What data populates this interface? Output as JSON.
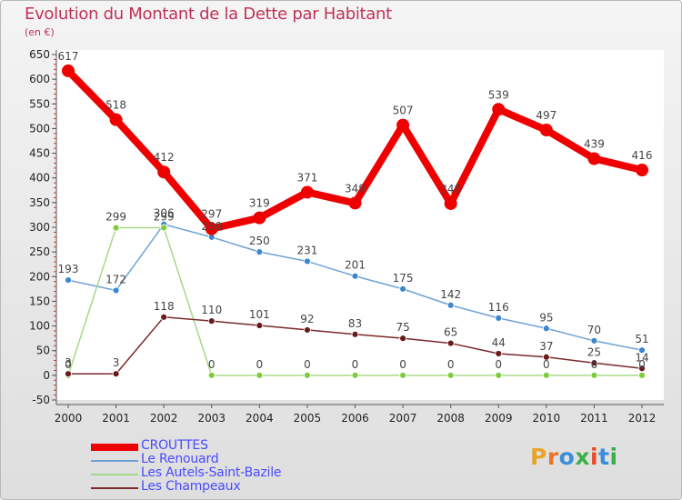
{
  "title": "Evolution du Montant de la Dette par Habitant",
  "unit_label": "(en €)",
  "logo": {
    "text": "Proxiti",
    "colors": [
      "#e8a52a",
      "#e8762a",
      "#3a8fd8",
      "#3ab04a",
      "#e84a2a",
      "#3a8fd8",
      "#3ab04a"
    ]
  },
  "chart_data": {
    "type": "line",
    "title": "Evolution du Montant de la Dette par Habitant",
    "ylabel": "(en €)",
    "xlabel": "",
    "x": [
      "2000",
      "2001",
      "2002",
      "2003",
      "2004",
      "2005",
      "2006",
      "2007",
      "2008",
      "2009",
      "2010",
      "2011",
      "2012"
    ],
    "ylim": [
      -50,
      650
    ],
    "yticks": [
      -50,
      0,
      50,
      100,
      150,
      200,
      250,
      300,
      350,
      400,
      450,
      500,
      550,
      600,
      650
    ],
    "grid": false,
    "legend_position": "bottom-left",
    "series": [
      {
        "name": "CROUTTES",
        "color": "#ee0000",
        "values": [
          617,
          518,
          412,
          297,
          319,
          371,
          349,
          507,
          348,
          539,
          497,
          439,
          416
        ],
        "labels": [
          "617",
          "518",
          "412",
          "297",
          "319",
          "371",
          "349",
          "507",
          "348",
          "539",
          "497",
          "439",
          "416"
        ]
      },
      {
        "name": "Le Renouard",
        "color": "#6fa2d6",
        "marker": "#3d86d0",
        "values": [
          193,
          172,
          306,
          280,
          250,
          231,
          201,
          175,
          142,
          116,
          95,
          70,
          51
        ],
        "labels": [
          "193",
          "172",
          "306",
          "280",
          "250",
          "231",
          "201",
          "175",
          "142",
          "116",
          "95",
          "70",
          "51"
        ]
      },
      {
        "name": "Les Autels-Saint-Bazile",
        "color": "#a6d98a",
        "marker": "#7ccc3c",
        "values": [
          0,
          299,
          299,
          0,
          0,
          0,
          0,
          0,
          0,
          0,
          0,
          0,
          0
        ],
        "labels": [
          "0",
          "299",
          "299",
          "0",
          "0",
          "0",
          "0",
          "0",
          "0",
          "0",
          "0",
          "0",
          "0"
        ]
      },
      {
        "name": "Les Champeaux",
        "color": "#7a2a2a",
        "marker": "#6b1a1a",
        "values": [
          3,
          3,
          118,
          110,
          101,
          92,
          83,
          75,
          65,
          44,
          37,
          25,
          14
        ],
        "labels": [
          "3",
          "3",
          "118",
          "110",
          "101",
          "92",
          "83",
          "75",
          "65",
          "44",
          "37",
          "25",
          "14"
        ]
      }
    ]
  }
}
